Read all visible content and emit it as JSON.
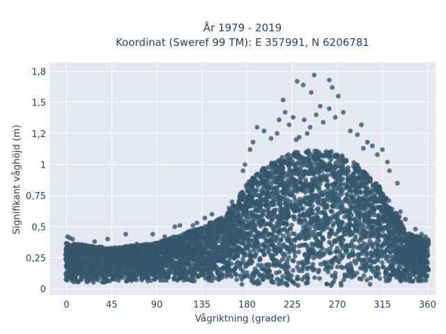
{
  "chart_data": {
    "type": "scatter",
    "title_line1": "År 1979 - 2019",
    "title_line2": "Koordinat (Sweref 99 TM): E 357991, N 6206781",
    "xlabel": "Vågriktning (grader)",
    "ylabel": "Signifikant våghöjd (m)",
    "xlim": [
      -17,
      368
    ],
    "ylim": [
      -0.05,
      1.82
    ],
    "x_ticks": [
      0,
      45,
      90,
      135,
      180,
      225,
      270,
      315,
      360
    ],
    "x_tick_labels": [
      "0",
      "45",
      "90",
      "135",
      "180",
      "225",
      "270",
      "315",
      "360"
    ],
    "y_ticks": [
      0,
      0.25,
      0.5,
      0.75,
      1.0,
      1.25,
      1.5,
      1.75
    ],
    "y_tick_labels": [
      "0",
      "0,25",
      "0,5",
      "0,75",
      "1",
      "1,2",
      "1,5",
      "1,8"
    ],
    "grid": true,
    "marker_color": "#35586e",
    "plot_background": "#e5e8f0",
    "envelope": {
      "direction": [
        0,
        45,
        90,
        135,
        160,
        180,
        200,
        225,
        250,
        270,
        290,
        315,
        340,
        360
      ],
      "max_height": [
        0.37,
        0.33,
        0.37,
        0.5,
        0.6,
        0.85,
        1.0,
        1.1,
        1.12,
        1.1,
        1.0,
        0.8,
        0.45,
        0.4
      ],
      "min_height": [
        0.05,
        0.05,
        0.06,
        0.06,
        0.05,
        0.02,
        0.02,
        0.02,
        0.02,
        0.02,
        0.03,
        0.04,
        0.05,
        0.06
      ]
    },
    "outliers": [
      {
        "x": 247,
        "y": 1.72
      },
      {
        "x": 262,
        "y": 1.68
      },
      {
        "x": 236,
        "y": 1.64
      },
      {
        "x": 230,
        "y": 1.67
      },
      {
        "x": 265,
        "y": 1.62
      },
      {
        "x": 216,
        "y": 1.52
      },
      {
        "x": 244,
        "y": 1.58
      },
      {
        "x": 271,
        "y": 1.55
      },
      {
        "x": 253,
        "y": 1.47
      },
      {
        "x": 262,
        "y": 1.45
      },
      {
        "x": 218,
        "y": 1.42
      },
      {
        "x": 226,
        "y": 1.38
      },
      {
        "x": 237,
        "y": 1.36
      },
      {
        "x": 249,
        "y": 1.4
      },
      {
        "x": 268,
        "y": 1.38
      },
      {
        "x": 276,
        "y": 1.42
      },
      {
        "x": 212,
        "y": 1.36
      },
      {
        "x": 256,
        "y": 1.34
      },
      {
        "x": 190,
        "y": 1.3
      },
      {
        "x": 197,
        "y": 1.27
      },
      {
        "x": 222,
        "y": 1.32
      },
      {
        "x": 243,
        "y": 1.3
      },
      {
        "x": 294,
        "y": 1.32
      },
      {
        "x": 283,
        "y": 1.27
      },
      {
        "x": 210,
        "y": 1.25
      },
      {
        "x": 232,
        "y": 1.22
      },
      {
        "x": 290,
        "y": 1.24
      },
      {
        "x": 186,
        "y": 1.18
      },
      {
        "x": 204,
        "y": 1.21
      },
      {
        "x": 300,
        "y": 1.18
      },
      {
        "x": 305,
        "y": 1.15
      },
      {
        "x": 183,
        "y": 1.12
      },
      {
        "x": 315,
        "y": 1.12
      },
      {
        "x": 310,
        "y": 1.08
      },
      {
        "x": 296,
        "y": 1.13
      },
      {
        "x": 229,
        "y": 1.2
      },
      {
        "x": 240,
        "y": 1.25
      },
      {
        "x": 176,
        "y": 0.95
      },
      {
        "x": 178,
        "y": 1.0
      },
      {
        "x": 320,
        "y": 1.02
      },
      {
        "x": 322,
        "y": 0.95
      },
      {
        "x": 330,
        "y": 0.85
      },
      {
        "x": 333,
        "y": 0.62
      },
      {
        "x": 338,
        "y": 0.56
      },
      {
        "x": 332,
        "y": 0.58
      },
      {
        "x": 354,
        "y": 0.44
      },
      {
        "x": 348,
        "y": 0.48
      },
      {
        "x": 165,
        "y": 0.7
      },
      {
        "x": 162,
        "y": 0.65
      },
      {
        "x": 145,
        "y": 0.6
      },
      {
        "x": 138,
        "y": 0.57
      },
      {
        "x": 130,
        "y": 0.53
      },
      {
        "x": 126,
        "y": 0.51
      },
      {
        "x": 108,
        "y": 0.5
      },
      {
        "x": 113,
        "y": 0.51
      },
      {
        "x": 86,
        "y": 0.44
      },
      {
        "x": 59,
        "y": 0.44
      },
      {
        "x": 41,
        "y": 0.4
      },
      {
        "x": 28,
        "y": 0.38
      },
      {
        "x": 1,
        "y": 0.42
      },
      {
        "x": 3,
        "y": 0.41
      },
      {
        "x": 6,
        "y": 0.4
      },
      {
        "x": 70,
        "y": 0.36
      },
      {
        "x": 98,
        "y": 0.42
      },
      {
        "x": 358,
        "y": 0.42
      },
      {
        "x": 361,
        "y": 0.38
      }
    ]
  }
}
